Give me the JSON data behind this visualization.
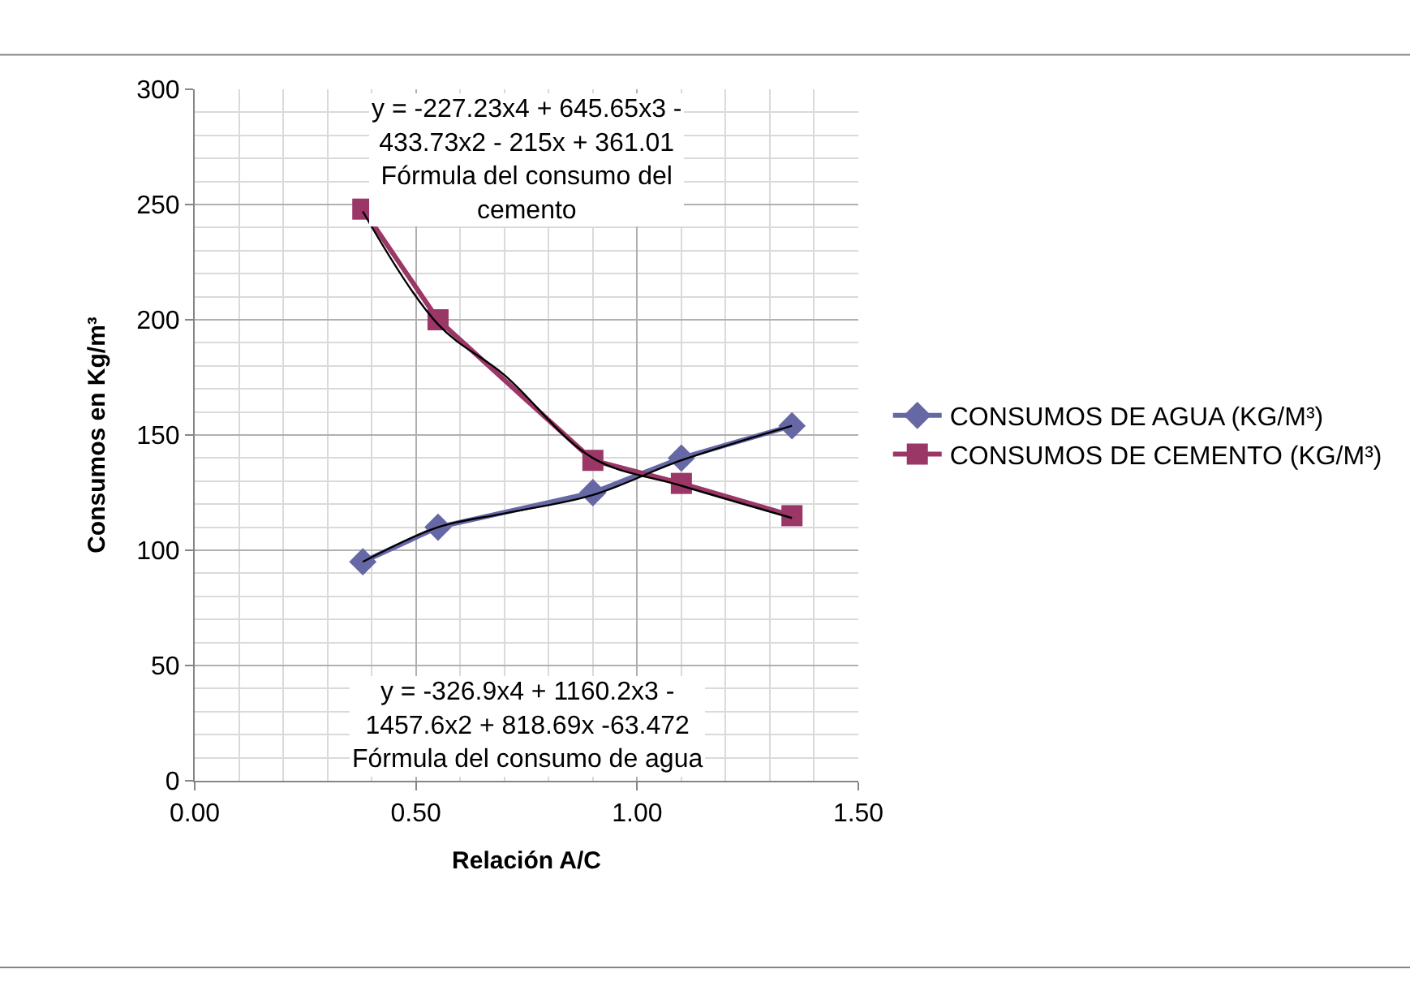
{
  "chart_data": {
    "type": "line",
    "xlabel": "Relación A/C",
    "ylabel": "Consumos en Kg/m³",
    "x": [
      0.38,
      0.55,
      0.9,
      1.1,
      1.35
    ],
    "series": [
      {
        "name": "CONSUMOS DE AGUA (KG/M³)",
        "color": "#6667a5",
        "values": [
          95,
          110,
          125,
          140,
          154
        ],
        "marker": "diamond"
      },
      {
        "name": "CONSUMOS DE CEMENTO (KG/M³)",
        "color": "#9b3766",
        "values": [
          248,
          200,
          139,
          129,
          115
        ],
        "marker": "square"
      },
      {
        "type": "line",
        "color": "#000000",
        "marker": "none",
        "x": [
          0.38,
          0.55,
          0.7,
          0.9,
          1.1,
          1.35
        ],
        "values": [
          95,
          110,
          116,
          124,
          139,
          154
        ]
      },
      {
        "type": "line",
        "color": "#000000",
        "marker": "none",
        "x": [
          0.38,
          0.55,
          0.7,
          0.9,
          1.1,
          1.35
        ],
        "values": [
          247,
          198,
          176,
          140,
          128,
          114
        ]
      }
    ],
    "xlim": [
      0,
      1.5
    ],
    "xticks": [
      {
        "value": 0,
        "label": "0.00"
      },
      {
        "value": 0.5,
        "label": "0.50"
      },
      {
        "value": 1,
        "label": "1.00"
      },
      {
        "value": 1.5,
        "label": "1.50"
      }
    ],
    "ylim": [
      0,
      300
    ],
    "yticks": [
      0,
      50,
      100,
      150,
      200,
      250,
      300
    ],
    "grid": true,
    "legend": "right",
    "annotations": [
      "y = -227.23x4 + 645.65x3 - 433.73x2 - 215x + 361.01 Fórmula del consumo del cemento",
      "y = -326.9x4 + 1160.2x3 - 1457.6x2 + 818.69x -63.472 Fórmula del consumo de agua"
    ]
  }
}
